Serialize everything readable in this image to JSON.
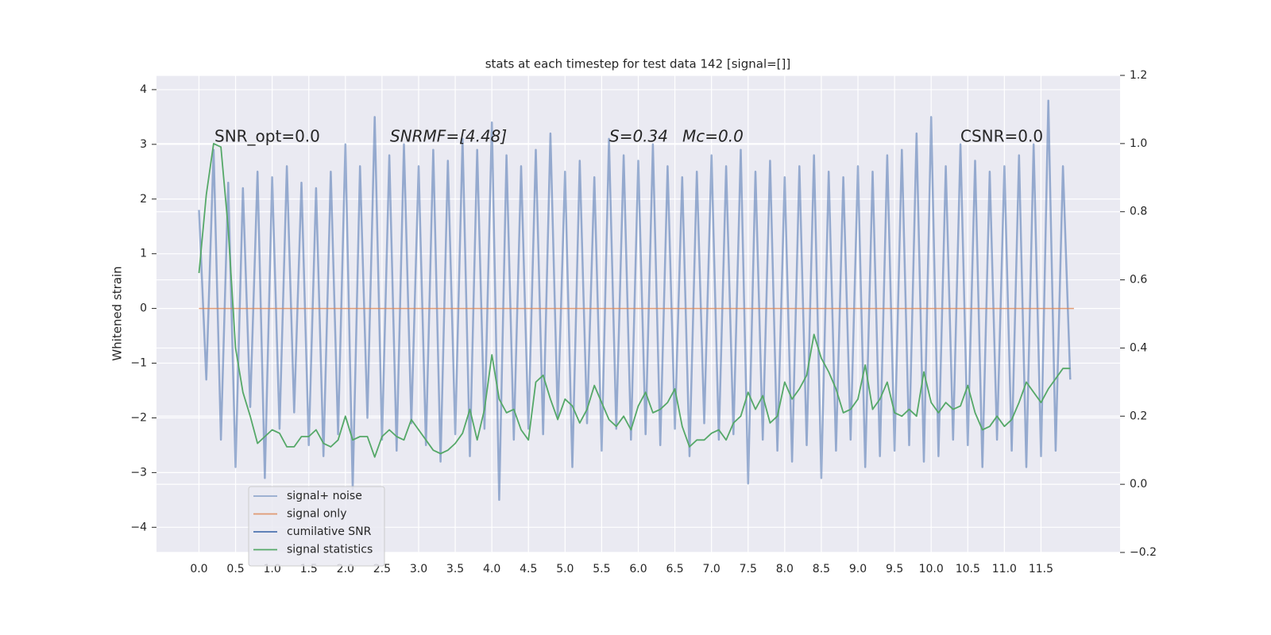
{
  "chart_data": {
    "type": "line",
    "title": "stats at each timestep for test data 142 [signal=[]]",
    "ylabel": "Whitened strain",
    "annotations": [
      "SNR_opt=0.0",
      "SNRMF=[4.48]",
      "S=0.34",
      "Mc=0.0",
      "CSNR=0.0"
    ],
    "grid": true,
    "legend": "lower left",
    "xlim": [
      -0.58,
      12.58
    ],
    "ylim": [
      -4.46,
      4.26
    ],
    "y2lim": [
      -0.2,
      1.2
    ],
    "xticks": [
      {
        "value": 0,
        "label": "0.0"
      },
      0.5,
      {
        "value": 1,
        "label": "1.0"
      },
      1.5,
      {
        "value": 2,
        "label": "2.0"
      },
      2.5,
      {
        "value": 3,
        "label": "3.0"
      },
      3.5,
      {
        "value": 4,
        "label": "4.0"
      },
      4.5,
      {
        "value": 5,
        "label": "5.0"
      },
      5.5,
      {
        "value": 6,
        "label": "6.0"
      },
      6.5,
      {
        "value": 7,
        "label": "7.0"
      },
      7.5,
      {
        "value": 8,
        "label": "8.0"
      },
      8.5,
      {
        "value": 9,
        "label": "9.0"
      },
      9.5,
      {
        "value": 10,
        "label": "10.0"
      },
      10.5,
      {
        "value": 11,
        "label": "11.0"
      },
      11.5
    ],
    "yticks": [
      {
        "value": -4,
        "label": "−4"
      },
      {
        "value": -3,
        "label": "−3"
      },
      {
        "value": -2,
        "label": "−2"
      },
      {
        "value": -1,
        "label": "−1"
      },
      0,
      1,
      2,
      3,
      4
    ],
    "y2ticks": [
      {
        "value": -0.2,
        "label": "−0.2"
      },
      {
        "value": 0,
        "label": "0.0"
      },
      0.2,
      0.4,
      0.6,
      0.8,
      {
        "value": 1,
        "label": "1.0"
      },
      1.2
    ],
    "x": [
      0,
      0.1,
      0.2,
      0.3,
      0.4,
      0.5,
      0.6,
      0.7,
      0.8,
      0.9,
      1,
      1.1,
      1.2,
      1.3,
      1.4,
      1.5,
      1.6,
      1.7,
      1.8,
      1.9,
      2,
      2.1,
      2.2,
      2.3,
      2.4,
      2.5,
      2.6,
      2.7,
      2.8,
      2.9,
      3,
      3.1,
      3.2,
      3.3,
      3.4,
      3.5,
      3.6,
      3.7,
      3.8,
      3.9,
      4,
      4.1,
      4.2,
      4.3,
      4.4,
      4.5,
      4.6,
      4.7,
      4.8,
      4.9,
      5,
      5.1,
      5.2,
      5.3,
      5.4,
      5.5,
      5.6,
      5.7,
      5.8,
      5.9,
      6,
      6.1,
      6.2,
      6.3,
      6.4,
      6.5,
      6.6,
      6.7,
      6.8,
      6.9,
      7,
      7.1,
      7.2,
      7.3,
      7.4,
      7.5,
      7.6,
      7.7,
      7.8,
      7.9,
      8,
      8.1,
      8.2,
      8.3,
      8.4,
      8.5,
      8.6,
      8.7,
      8.8,
      8.9,
      9,
      9.1,
      9.2,
      9.3,
      9.4,
      9.5,
      9.6,
      9.7,
      9.8,
      9.9,
      10,
      10.1,
      10.2,
      10.3,
      10.4,
      10.5,
      10.6,
      10.7,
      10.8,
      10.9,
      11,
      11.1,
      11.2,
      11.3,
      11.4,
      11.5,
      11.6,
      11.7,
      11.8,
      11.9
    ],
    "series": [
      {
        "name": "signal+ noise",
        "color": "#4c72b0",
        "values": [
          1.8,
          -1.3,
          2.9,
          -2.4,
          2.3,
          -2.9,
          2.2,
          -1.8,
          2.5,
          -3.1,
          2.4,
          -2.2,
          2.6,
          -1.9,
          2.3,
          -2.5,
          2.2,
          -2.7,
          2.5,
          -2.3,
          3.0,
          -3.3,
          2.6,
          -2.0,
          3.5,
          -2.4,
          2.8,
          -2.6,
          3.0,
          -2.1,
          2.6,
          -2.5,
          2.9,
          -2.8,
          2.7,
          -2.3,
          3.1,
          -2.7,
          2.9,
          -2.2,
          3.4,
          -3.5,
          2.8,
          -2.4,
          2.6,
          -2.2,
          2.9,
          -2.3,
          3.2,
          -2.0,
          2.5,
          -2.9,
          2.7,
          -2.1,
          2.4,
          -2.6,
          3.1,
          -2.2,
          2.8,
          -2.4,
          2.7,
          -2.3,
          3.0,
          -2.5,
          2.6,
          -2.2,
          2.4,
          -2.7,
          2.5,
          -2.1,
          2.8,
          -2.4,
          2.6,
          -2.3,
          2.9,
          -3.2,
          2.5,
          -2.4,
          2.7,
          -2.6,
          2.4,
          -2.8,
          2.6,
          -2.5,
          2.8,
          -3.1,
          2.5,
          -2.6,
          2.4,
          -2.4,
          2.6,
          -2.9,
          2.5,
          -2.7,
          2.8,
          -2.6,
          2.9,
          -2.5,
          3.2,
          -2.8,
          3.5,
          -2.7,
          2.6,
          -2.4,
          3.0,
          -2.5,
          2.7,
          -2.9,
          2.5,
          -2.4,
          2.6,
          -2.6,
          2.8,
          -2.9,
          3.0,
          -2.7,
          3.8,
          -2.6,
          2.6,
          -1.3
        ]
      },
      {
        "name": "signal only",
        "color": "#dd8452",
        "x": [
          0,
          11.95
        ],
        "values": [
          0,
          0
        ]
      },
      {
        "name": "cumilative SNR",
        "color": "#4c72b0",
        "axis": "y2",
        "x": [],
        "values": []
      },
      {
        "name": "signal statistics",
        "color": "#55a868",
        "axis": "y2",
        "values": [
          0.62,
          0.85,
          1.0,
          0.99,
          0.75,
          0.4,
          0.27,
          0.2,
          0.12,
          0.14,
          0.16,
          0.15,
          0.11,
          0.11,
          0.14,
          0.14,
          0.16,
          0.12,
          0.11,
          0.13,
          0.2,
          0.13,
          0.14,
          0.14,
          0.08,
          0.14,
          0.16,
          0.14,
          0.13,
          0.19,
          0.16,
          0.13,
          0.1,
          0.09,
          0.1,
          0.12,
          0.15,
          0.22,
          0.13,
          0.22,
          0.38,
          0.25,
          0.21,
          0.22,
          0.16,
          0.13,
          0.3,
          0.32,
          0.25,
          0.19,
          0.25,
          0.23,
          0.18,
          0.22,
          0.29,
          0.24,
          0.19,
          0.17,
          0.2,
          0.16,
          0.23,
          0.27,
          0.21,
          0.22,
          0.24,
          0.28,
          0.17,
          0.11,
          0.13,
          0.13,
          0.15,
          0.16,
          0.13,
          0.18,
          0.2,
          0.27,
          0.22,
          0.26,
          0.18,
          0.2,
          0.3,
          0.25,
          0.28,
          0.32,
          0.44,
          0.37,
          0.33,
          0.28,
          0.21,
          0.22,
          0.25,
          0.35,
          0.22,
          0.25,
          0.3,
          0.21,
          0.2,
          0.22,
          0.2,
          0.33,
          0.24,
          0.21,
          0.24,
          0.22,
          0.23,
          0.29,
          0.21,
          0.16,
          0.17,
          0.2,
          0.17,
          0.19,
          0.24,
          0.3,
          0.27,
          0.24,
          0.28,
          0.31,
          0.34,
          0.34
        ]
      }
    ]
  }
}
